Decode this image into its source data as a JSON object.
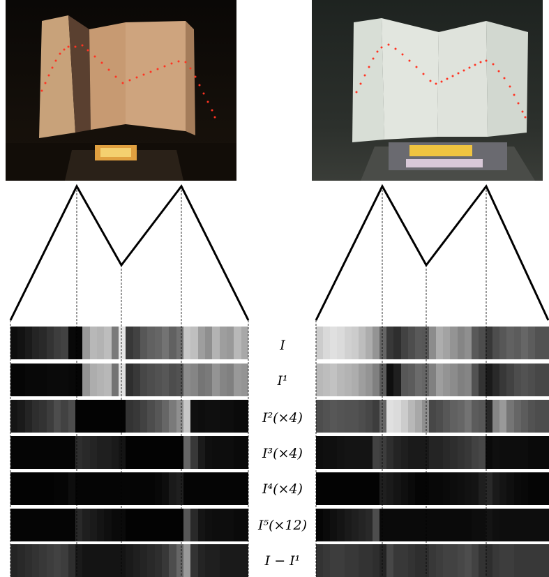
{
  "figure": {
    "rows": [
      {
        "label": "I",
        "left": [
          0.05,
          0.07,
          0.1,
          0.14,
          0.16,
          0.2,
          0.24,
          0.26,
          0.03,
          0.02,
          0.6,
          0.72,
          0.7,
          0.74,
          0.48,
          0.9,
          0.22,
          0.26,
          0.34,
          0.38,
          0.4,
          0.45,
          0.38,
          0.44,
          0.78,
          0.75,
          0.62,
          0.56,
          0.7,
          0.62,
          0.6,
          0.72,
          0.66
        ],
        "right": [
          0.8,
          0.85,
          0.88,
          0.86,
          0.82,
          0.8,
          0.74,
          0.68,
          0.58,
          0.4,
          0.22,
          0.18,
          0.26,
          0.3,
          0.35,
          0.34,
          0.55,
          0.68,
          0.64,
          0.58,
          0.52,
          0.56,
          0.35,
          0.3,
          0.22,
          0.3,
          0.34,
          0.38,
          0.36,
          0.4,
          0.36,
          0.32,
          0.32
        ]
      },
      {
        "label": "I¹",
        "left": [
          0.02,
          0.02,
          0.03,
          0.03,
          0.03,
          0.04,
          0.04,
          0.04,
          0.03,
          0.02,
          0.58,
          0.68,
          0.7,
          0.72,
          0.45,
          0.88,
          0.18,
          0.22,
          0.28,
          0.3,
          0.32,
          0.34,
          0.3,
          0.32,
          0.55,
          0.52,
          0.46,
          0.48,
          0.58,
          0.52,
          0.5,
          0.6,
          0.58
        ],
        "right": [
          0.72,
          0.74,
          0.76,
          0.72,
          0.7,
          0.68,
          0.62,
          0.58,
          0.5,
          0.36,
          0.06,
          0.12,
          0.34,
          0.36,
          0.42,
          0.4,
          0.5,
          0.62,
          0.58,
          0.55,
          0.5,
          0.52,
          0.32,
          0.2,
          0.1,
          0.16,
          0.22,
          0.26,
          0.3,
          0.32,
          0.3,
          0.28,
          0.28
        ]
      },
      {
        "label": "I²(×4)",
        "left": [
          0.08,
          0.1,
          0.14,
          0.18,
          0.2,
          0.24,
          0.3,
          0.26,
          0.3,
          0.01,
          0.01,
          0.01,
          0.01,
          0.01,
          0.01,
          0.01,
          0.2,
          0.22,
          0.26,
          0.3,
          0.34,
          0.4,
          0.48,
          0.56,
          0.78,
          0.06,
          0.05,
          0.06,
          0.06,
          0.05,
          0.05,
          0.04,
          0.04
        ],
        "right": [
          0.3,
          0.32,
          0.34,
          0.33,
          0.32,
          0.32,
          0.3,
          0.28,
          0.24,
          0.4,
          0.88,
          0.86,
          0.8,
          0.72,
          0.66,
          0.56,
          0.28,
          0.3,
          0.34,
          0.38,
          0.4,
          0.45,
          0.36,
          0.34,
          0.16,
          0.52,
          0.6,
          0.46,
          0.4,
          0.36,
          0.32,
          0.3,
          0.3
        ]
      },
      {
        "label": "I³(×4)",
        "left": [
          0.02,
          0.02,
          0.02,
          0.02,
          0.02,
          0.02,
          0.02,
          0.02,
          0.02,
          0.18,
          0.16,
          0.14,
          0.12,
          0.12,
          0.1,
          0.08,
          0.01,
          0.01,
          0.01,
          0.01,
          0.01,
          0.01,
          0.01,
          0.01,
          0.4,
          0.22,
          0.1,
          0.06,
          0.05,
          0.05,
          0.05,
          0.04,
          0.04
        ],
        "right": [
          0.05,
          0.06,
          0.06,
          0.07,
          0.08,
          0.08,
          0.08,
          0.08,
          0.26,
          0.24,
          0.18,
          0.14,
          0.12,
          0.1,
          0.1,
          0.1,
          0.14,
          0.14,
          0.16,
          0.18,
          0.2,
          0.22,
          0.26,
          0.28,
          0.04,
          0.06,
          0.05,
          0.05,
          0.05,
          0.05,
          0.04,
          0.04,
          0.04
        ]
      },
      {
        "label": "I⁴(×4)",
        "left": [
          0.01,
          0.01,
          0.01,
          0.01,
          0.01,
          0.01,
          0.02,
          0.02,
          0.05,
          0.02,
          0.02,
          0.02,
          0.02,
          0.02,
          0.02,
          0.02,
          0.02,
          0.02,
          0.02,
          0.02,
          0.03,
          0.05,
          0.1,
          0.12,
          0.02,
          0.02,
          0.02,
          0.02,
          0.02,
          0.02,
          0.02,
          0.02,
          0.02
        ],
        "right": [
          0.01,
          0.01,
          0.01,
          0.01,
          0.01,
          0.01,
          0.01,
          0.01,
          0.01,
          0.12,
          0.1,
          0.08,
          0.06,
          0.04,
          0.02,
          0.02,
          0.03,
          0.03,
          0.04,
          0.05,
          0.06,
          0.07,
          0.08,
          0.12,
          0.16,
          0.1,
          0.08,
          0.06,
          0.04,
          0.03,
          0.02,
          0.02,
          0.02
        ]
      },
      {
        "label": "I⁵(×12)",
        "left": [
          0.02,
          0.02,
          0.02,
          0.02,
          0.02,
          0.02,
          0.02,
          0.02,
          0.02,
          0.16,
          0.12,
          0.1,
          0.08,
          0.06,
          0.04,
          0.04,
          0.01,
          0.01,
          0.01,
          0.01,
          0.01,
          0.01,
          0.01,
          0.01,
          0.34,
          0.16,
          0.08,
          0.06,
          0.05,
          0.05,
          0.05,
          0.04,
          0.04
        ],
        "right": [
          0.02,
          0.04,
          0.06,
          0.08,
          0.1,
          0.12,
          0.14,
          0.16,
          0.3,
          0.04,
          0.04,
          0.04,
          0.04,
          0.04,
          0.04,
          0.04,
          0.04,
          0.04,
          0.04,
          0.04,
          0.04,
          0.04,
          0.05,
          0.05,
          0.08,
          0.06,
          0.05,
          0.05,
          0.05,
          0.05,
          0.05,
          0.05,
          0.05
        ]
      },
      {
        "label": "I − I¹",
        "left": [
          0.14,
          0.16,
          0.18,
          0.2,
          0.22,
          0.24,
          0.26,
          0.24,
          0.18,
          0.1,
          0.08,
          0.08,
          0.08,
          0.08,
          0.08,
          0.08,
          0.1,
          0.12,
          0.14,
          0.16,
          0.18,
          0.22,
          0.3,
          0.4,
          0.6,
          0.2,
          0.14,
          0.12,
          0.12,
          0.1,
          0.1,
          0.1,
          0.1
        ],
        "right": [
          0.2,
          0.22,
          0.24,
          0.24,
          0.22,
          0.22,
          0.2,
          0.2,
          0.18,
          0.14,
          0.28,
          0.22,
          0.22,
          0.2,
          0.18,
          0.18,
          0.22,
          0.24,
          0.26,
          0.26,
          0.28,
          0.3,
          0.26,
          0.2,
          0.18,
          0.22,
          0.24,
          0.24,
          0.22,
          0.22,
          0.22,
          0.22,
          0.22
        ]
      }
    ]
  }
}
